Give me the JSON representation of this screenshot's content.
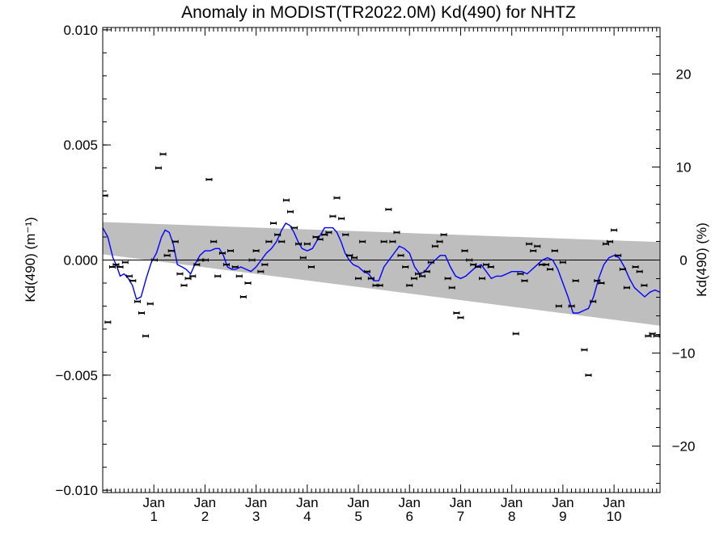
{
  "chart_data": {
    "type": "scatter",
    "title": "Anomaly in MODIST(TR2022.0M) Kd(490) for NHTZ",
    "ylabel": "Kd(490) (m⁻¹)",
    "y2label": "Kd(490) (%)",
    "xlabel": "",
    "xlim": [
      0,
      10.9
    ],
    "ylim": [
      -0.0101,
      0.0101
    ],
    "y2lim": [
      -25,
      25
    ],
    "grid": false,
    "x_tick_labels": [
      {
        "top": "Jan",
        "bottom": "1",
        "x": 1
      },
      {
        "top": "Jan",
        "bottom": "2",
        "x": 2
      },
      {
        "top": "Jan",
        "bottom": "3",
        "x": 3
      },
      {
        "top": "Jan",
        "bottom": "4",
        "x": 4
      },
      {
        "top": "Jan",
        "bottom": "5",
        "x": 5
      },
      {
        "top": "Jan",
        "bottom": "6",
        "x": 6
      },
      {
        "top": "Jan",
        "bottom": "7",
        "x": 7
      },
      {
        "top": "Jan",
        "bottom": "8",
        "x": 8
      },
      {
        "top": "Jan",
        "bottom": "9",
        "x": 9
      },
      {
        "top": "Jan",
        "bottom": "10",
        "x": 10
      }
    ],
    "y_ticks": [
      {
        "value": 0.01,
        "label": "0.010"
      },
      {
        "value": 0.005,
        "label": "0.005"
      },
      {
        "value": 0.0,
        "label": "0.000"
      },
      {
        "value": -0.005,
        "label": "−0.005"
      },
      {
        "value": -0.01,
        "label": "−0.010"
      }
    ],
    "y2_ticks": [
      {
        "value": 20,
        "label": "20"
      },
      {
        "value": 10,
        "label": "10"
      },
      {
        "value": 0,
        "label": "0"
      },
      {
        "value": -10,
        "label": "−10"
      },
      {
        "value": -20,
        "label": "−20"
      }
    ],
    "confidence_band": {
      "x": [
        0,
        10.9
      ],
      "upper": [
        0.00165,
        0.00078
      ],
      "lower": [
        0.00025,
        -0.00285
      ],
      "color": "#bebebe"
    },
    "zero_line": 0,
    "series": [
      {
        "kind": "points_with_errorbars",
        "color": "#000000",
        "points": [
          [
            0.04,
            0.0028
          ],
          [
            0.1,
            -0.0027
          ],
          [
            0.19,
            -0.0003
          ],
          [
            0.26,
            -0.0002
          ],
          [
            0.34,
            -0.0003
          ],
          [
            0.44,
            -0.0001
          ],
          [
            0.52,
            -0.0007
          ],
          [
            0.59,
            -0.0009
          ],
          [
            0.68,
            -0.0018
          ],
          [
            0.76,
            -0.0023
          ],
          [
            0.84,
            -0.0033
          ],
          [
            0.93,
            -0.0019
          ],
          [
            1.01,
            0.0
          ],
          [
            1.09,
            0.004
          ],
          [
            1.18,
            0.0046
          ],
          [
            1.26,
            0.0002
          ],
          [
            1.34,
            0.0004
          ],
          [
            1.42,
            0.0008
          ],
          [
            1.51,
            -0.0006
          ],
          [
            1.59,
            -0.0011
          ],
          [
            1.67,
            -0.0008
          ],
          [
            1.76,
            -0.0007
          ],
          [
            1.84,
            -0.0002
          ],
          [
            1.92,
            0.0
          ],
          [
            2.01,
            0.0
          ],
          [
            2.08,
            0.0035
          ],
          [
            2.17,
            0.0008
          ],
          [
            2.25,
            -0.0007
          ],
          [
            2.34,
            0.0003
          ],
          [
            2.42,
            -0.0002
          ],
          [
            2.5,
            0.0004
          ],
          [
            2.59,
            -0.0003
          ],
          [
            2.67,
            -0.0007
          ],
          [
            2.75,
            -0.0016
          ],
          [
            2.84,
            -0.001
          ],
          [
            2.92,
            0.0
          ],
          [
            3.0,
            0.0004
          ],
          [
            3.09,
            -0.0005
          ],
          [
            3.17,
            -0.0002
          ],
          [
            3.25,
            0.0008
          ],
          [
            3.34,
            0.0016
          ],
          [
            3.42,
            0.0011
          ],
          [
            3.5,
            0.0008
          ],
          [
            3.59,
            0.0026
          ],
          [
            3.67,
            0.0021
          ],
          [
            3.75,
            0.0014
          ],
          [
            3.83,
            0.0007
          ],
          [
            3.92,
            0.0001
          ],
          [
            4.0,
            0.0007
          ],
          [
            4.08,
            -0.0003
          ],
          [
            4.17,
            0.001
          ],
          [
            4.25,
            0.0009
          ],
          [
            4.34,
            0.0011
          ],
          [
            4.42,
            0.0012
          ],
          [
            4.5,
            0.0019
          ],
          [
            4.58,
            0.0027
          ],
          [
            4.67,
            0.0018
          ],
          [
            4.75,
            0.0011
          ],
          [
            4.83,
            0.0002
          ],
          [
            4.92,
            0.0001
          ],
          [
            5.0,
            -0.0008
          ],
          [
            5.08,
            0.0008
          ],
          [
            5.17,
            -0.0005
          ],
          [
            5.25,
            -0.0008
          ],
          [
            5.34,
            -0.0011
          ],
          [
            5.42,
            -0.0011
          ],
          [
            5.5,
            0.0008
          ],
          [
            5.59,
            0.0022
          ],
          [
            5.67,
            0.0008
          ],
          [
            5.75,
            0.0012
          ],
          [
            5.83,
            0.0002
          ],
          [
            5.92,
            -0.0003
          ],
          [
            6.0,
            -0.0011
          ],
          [
            6.09,
            -0.0008
          ],
          [
            6.17,
            -0.0006
          ],
          [
            6.25,
            -0.0007
          ],
          [
            6.34,
            -0.0005
          ],
          [
            6.42,
            -0.0001
          ],
          [
            6.5,
            0.0006
          ],
          [
            6.59,
            0.0008
          ],
          [
            6.67,
            0.0011
          ],
          [
            6.75,
            -0.0008
          ],
          [
            6.83,
            -0.0012
          ],
          [
            6.92,
            -0.0023
          ],
          [
            7.0,
            -0.0025
          ],
          [
            7.08,
            0.0004
          ],
          [
            7.17,
            0.0
          ],
          [
            7.25,
            -0.0002
          ],
          [
            7.34,
            -0.0003
          ],
          [
            7.42,
            -0.0008
          ],
          [
            7.5,
            -0.0002
          ],
          [
            7.59,
            -0.0003
          ],
          [
            8.08,
            -0.0032
          ],
          [
            8.17,
            -0.0006
          ],
          [
            8.25,
            -0.0009
          ],
          [
            8.34,
            0.0007
          ],
          [
            8.42,
            0.0004
          ],
          [
            8.5,
            0.0006
          ],
          [
            8.59,
            -0.0002
          ],
          [
            8.67,
            -0.0002
          ],
          [
            8.75,
            -0.0004
          ],
          [
            8.84,
            0.0004
          ],
          [
            8.92,
            -0.002
          ],
          [
            9.0,
            -0.0001
          ],
          [
            9.17,
            -0.002
          ],
          [
            9.25,
            -0.0009
          ],
          [
            9.42,
            -0.0039
          ],
          [
            9.5,
            -0.005
          ],
          [
            9.59,
            -0.0018
          ],
          [
            9.67,
            -0.0009
          ],
          [
            9.75,
            -0.001
          ],
          [
            9.84,
            0.0007
          ],
          [
            9.92,
            0.0008
          ],
          [
            10.0,
            0.0013
          ],
          [
            10.08,
            0.0002
          ],
          [
            10.17,
            -0.0004
          ],
          [
            10.25,
            -0.0012
          ],
          [
            10.42,
            -0.0003
          ],
          [
            10.5,
            -0.0005
          ],
          [
            10.59,
            -0.0011
          ],
          [
            10.67,
            -0.0033
          ],
          [
            10.75,
            -0.0032
          ],
          [
            10.83,
            -0.0033
          ]
        ]
      },
      {
        "kind": "smoothed_line",
        "color": "#0000ff",
        "points": [
          [
            0.0,
            0.0014
          ],
          [
            0.1,
            0.001
          ],
          [
            0.2,
            0.0001
          ],
          [
            0.28,
            -0.0003
          ],
          [
            0.34,
            -0.0007
          ],
          [
            0.42,
            -0.0006
          ],
          [
            0.5,
            -0.0008
          ],
          [
            0.58,
            -0.0011
          ],
          [
            0.66,
            -0.0017
          ],
          [
            0.75,
            -0.0016
          ],
          [
            0.85,
            -0.0008
          ],
          [
            0.95,
            -0.0001
          ],
          [
            1.05,
            0.0003
          ],
          [
            1.15,
            0.001
          ],
          [
            1.22,
            0.0013
          ],
          [
            1.3,
            0.0012
          ],
          [
            1.38,
            0.0007
          ],
          [
            1.46,
            -0.0002
          ],
          [
            1.55,
            -0.0003
          ],
          [
            1.63,
            -0.0004
          ],
          [
            1.72,
            -0.0006
          ],
          [
            1.8,
            -0.0002
          ],
          [
            1.9,
            0.0002
          ],
          [
            2.0,
            0.0004
          ],
          [
            2.1,
            0.0004
          ],
          [
            2.2,
            0.0005
          ],
          [
            2.28,
            0.0005
          ],
          [
            2.36,
            0.0002
          ],
          [
            2.44,
            -0.0003
          ],
          [
            2.52,
            -0.0004
          ],
          [
            2.6,
            -0.0004
          ],
          [
            2.7,
            -0.0003
          ],
          [
            2.8,
            -0.0004
          ],
          [
            2.9,
            -0.0005
          ],
          [
            3.0,
            -0.0003
          ],
          [
            3.1,
            0.0
          ],
          [
            3.2,
            0.0003
          ],
          [
            3.3,
            0.0005
          ],
          [
            3.4,
            0.0008
          ],
          [
            3.5,
            0.0013
          ],
          [
            3.58,
            0.0016
          ],
          [
            3.66,
            0.0015
          ],
          [
            3.74,
            0.0012
          ],
          [
            3.82,
            0.0008
          ],
          [
            3.9,
            0.0005
          ],
          [
            4.0,
            0.0004
          ],
          [
            4.1,
            0.0005
          ],
          [
            4.18,
            0.0008
          ],
          [
            4.26,
            0.0011
          ],
          [
            4.34,
            0.0014
          ],
          [
            4.42,
            0.0014
          ],
          [
            4.5,
            0.0014
          ],
          [
            4.58,
            0.0012
          ],
          [
            4.66,
            0.0008
          ],
          [
            4.74,
            0.0003
          ],
          [
            4.82,
            0.0
          ],
          [
            4.9,
            -0.0002
          ],
          [
            5.0,
            -0.0003
          ],
          [
            5.1,
            -0.0005
          ],
          [
            5.2,
            -0.0006
          ],
          [
            5.3,
            -0.0009
          ],
          [
            5.4,
            -0.0009
          ],
          [
            5.5,
            -0.0003
          ],
          [
            5.6,
            0.0
          ],
          [
            5.7,
            0.0003
          ],
          [
            5.8,
            0.0006
          ],
          [
            5.9,
            0.0005
          ],
          [
            6.0,
            0.0003
          ],
          [
            6.1,
            -0.0003
          ],
          [
            6.2,
            -0.0006
          ],
          [
            6.3,
            -0.0005
          ],
          [
            6.4,
            -0.0002
          ],
          [
            6.5,
            0.0
          ],
          [
            6.6,
            0.0002
          ],
          [
            6.7,
            0.0002
          ],
          [
            6.8,
            -0.0003
          ],
          [
            6.9,
            -0.0007
          ],
          [
            7.0,
            -0.0008
          ],
          [
            7.1,
            -0.0007
          ],
          [
            7.2,
            -0.0005
          ],
          [
            7.3,
            -0.0003
          ],
          [
            7.4,
            -0.0002
          ],
          [
            7.5,
            -0.0005
          ],
          [
            7.6,
            -0.0008
          ],
          [
            7.7,
            -0.0007
          ],
          [
            7.8,
            -0.0007
          ],
          [
            7.9,
            -0.0006
          ],
          [
            8.0,
            -0.0005
          ],
          [
            8.1,
            -0.0005
          ],
          [
            8.2,
            -0.0005
          ],
          [
            8.3,
            -0.0006
          ],
          [
            8.4,
            -0.0004
          ],
          [
            8.5,
            -0.0002
          ],
          [
            8.6,
            0.0
          ],
          [
            8.7,
            0.0001
          ],
          [
            8.8,
            0.0
          ],
          [
            8.9,
            -0.0004
          ],
          [
            9.0,
            -0.001
          ],
          [
            9.1,
            -0.0016
          ],
          [
            9.2,
            -0.0023
          ],
          [
            9.3,
            -0.0023
          ],
          [
            9.4,
            -0.0022
          ],
          [
            9.5,
            -0.0021
          ],
          [
            9.6,
            -0.0016
          ],
          [
            9.7,
            -0.0008
          ],
          [
            9.8,
            -0.0002
          ],
          [
            9.9,
            0.0001
          ],
          [
            10.0,
            0.0002
          ],
          [
            10.1,
            0.0001
          ],
          [
            10.2,
            -0.0003
          ],
          [
            10.3,
            -0.0008
          ],
          [
            10.4,
            -0.0012
          ],
          [
            10.5,
            -0.0014
          ],
          [
            10.6,
            -0.0016
          ],
          [
            10.7,
            -0.0014
          ],
          [
            10.8,
            -0.0013
          ],
          [
            10.9,
            -0.0014
          ]
        ]
      }
    ]
  }
}
